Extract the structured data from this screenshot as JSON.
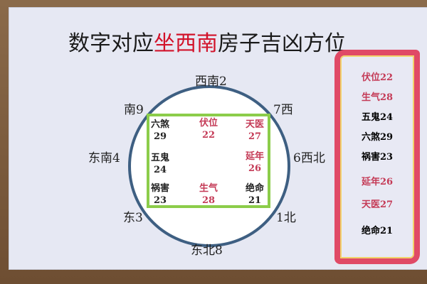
{
  "title": {
    "pre": "数字对应",
    "highlight": "坐西南",
    "post": "房子吉凶方位"
  },
  "directions": {
    "top": "西南2",
    "top_left": "南9",
    "top_right": "7西",
    "left": "东南4",
    "right": "6西北",
    "bottom_left": "东3",
    "bottom_right": "1北",
    "bottom": "东北8"
  },
  "grid": [
    {
      "name": "六煞",
      "num": "29",
      "color": "black"
    },
    {
      "name": "伏位",
      "num": "22",
      "color": "red"
    },
    {
      "name": "天医",
      "num": "27",
      "color": "red"
    },
    {
      "name": "五鬼",
      "num": "24",
      "color": "black"
    },
    {
      "name": "延年",
      "num": "26",
      "color": "red"
    },
    {
      "name": "祸害",
      "num": "23",
      "color": "black"
    },
    {
      "name": "生气",
      "num": "28",
      "color": "red"
    },
    {
      "name": "绝命",
      "num": "21",
      "color": "black"
    }
  ],
  "panel": [
    "伏位22",
    "生气28",
    "五鬼24",
    "六煞29",
    "祸害23",
    "延年26",
    "天医27",
    "绝命21"
  ],
  "colors": {
    "red": "#c43a56",
    "title_red": "#d2122a",
    "circle": "#3e5f82",
    "square": "#8ccd4a"
  }
}
